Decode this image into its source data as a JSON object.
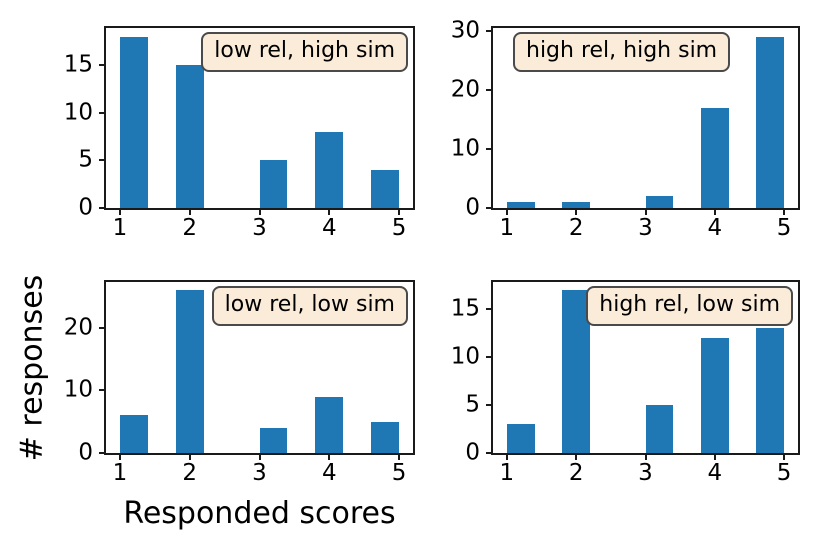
{
  "figure": {
    "xlabel": "Responded scores",
    "ylabel": "# responses"
  },
  "colors": {
    "bar": "#1f77b4",
    "axis": "#1a1a1a",
    "legend_bg": "#faecd9",
    "legend_border": "#4a4a4a",
    "background": "#ffffff"
  },
  "chart_data": [
    {
      "type": "bar",
      "title": "low rel, high sim",
      "legend_loc": "upper-right",
      "categories": [
        1,
        2,
        3,
        4,
        5
      ],
      "values": [
        18,
        15,
        5,
        8,
        4
      ],
      "yticks": [
        0,
        5,
        10,
        15
      ],
      "ylim": [
        0,
        18.9
      ],
      "xlim": [
        0.8,
        5.2
      ],
      "bar_starts": [
        1.0,
        1.8,
        3.0,
        3.8,
        4.6
      ],
      "bar_width": 0.4,
      "xlabel": "",
      "ylabel": "",
      "grid": false
    },
    {
      "type": "bar",
      "title": "high rel, high sim",
      "legend_loc": "upper-left",
      "categories": [
        1,
        2,
        3,
        4,
        5
      ],
      "values": [
        1,
        1,
        2,
        17,
        29
      ],
      "yticks": [
        0,
        10,
        20,
        30
      ],
      "ylim": [
        0,
        30.45
      ],
      "xlim": [
        0.8,
        5.2
      ],
      "bar_starts": [
        1.0,
        1.8,
        3.0,
        3.8,
        4.6
      ],
      "bar_width": 0.4,
      "xlabel": "",
      "ylabel": "",
      "grid": false
    },
    {
      "type": "bar",
      "title": "low rel, low sim",
      "legend_loc": "upper-right",
      "categories": [
        1,
        2,
        3,
        4,
        5
      ],
      "values": [
        6,
        26,
        4,
        9,
        5
      ],
      "yticks": [
        0,
        10,
        20
      ],
      "ylim": [
        0,
        27.3
      ],
      "xlim": [
        0.8,
        5.2
      ],
      "bar_starts": [
        1.0,
        1.8,
        3.0,
        3.8,
        4.6
      ],
      "bar_width": 0.4,
      "xlabel": "Responded scores",
      "ylabel": "# responses",
      "grid": false
    },
    {
      "type": "bar",
      "title": "high rel, low sim",
      "legend_loc": "upper-right",
      "categories": [
        1,
        2,
        3,
        4,
        5
      ],
      "values": [
        3,
        17,
        5,
        12,
        13
      ],
      "yticks": [
        0,
        5,
        10,
        15
      ],
      "ylim": [
        0,
        17.85
      ],
      "xlim": [
        0.8,
        5.2
      ],
      "bar_starts": [
        1.0,
        1.8,
        3.0,
        3.8,
        4.6
      ],
      "bar_width": 0.4,
      "xlabel": "",
      "ylabel": "",
      "grid": false
    }
  ]
}
